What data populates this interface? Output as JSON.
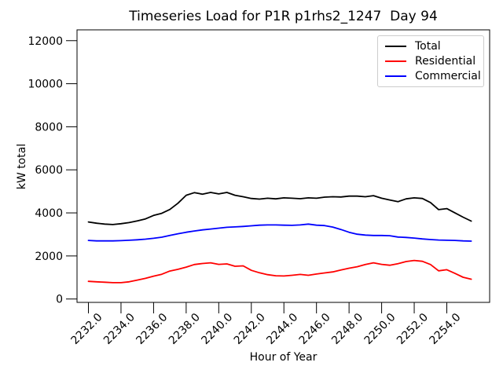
{
  "chart_data": {
    "type": "line",
    "title": "Timeseries Load for P1R p1rhs2_1247  Day 94",
    "xlabel": "Hour of Year",
    "ylabel": "kW total",
    "xlim": [
      2231.3,
      2256.63
    ],
    "ylim": [
      -157,
      12502
    ],
    "grid": false,
    "legend_position": "upper right",
    "x_ticks": [
      2232,
      2234,
      2236,
      2238,
      2240,
      2242,
      2244,
      2246,
      2248,
      2250,
      2252,
      2254
    ],
    "x_tick_labels": [
      "2232.0",
      "2234.0",
      "2236.0",
      "2238.0",
      "2240.0",
      "2242.0",
      "2244.0",
      "2246.0",
      "2248.0",
      "2250.0",
      "2252.0",
      "2254.0"
    ],
    "y_ticks": [
      0,
      2000,
      4000,
      6000,
      8000,
      10000,
      12000
    ],
    "y_tick_labels": [
      "0",
      "2000",
      "4000",
      "6000",
      "8000",
      "10000",
      "12000"
    ],
    "x": [
      2232.0,
      2232.5,
      2233.0,
      2233.5,
      2234.0,
      2234.5,
      2235.0,
      2235.5,
      2236.0,
      2236.5,
      2237.0,
      2237.5,
      2238.0,
      2238.5,
      2239.0,
      2239.5,
      2240.0,
      2240.5,
      2241.0,
      2241.5,
      2242.0,
      2242.5,
      2243.0,
      2243.5,
      2244.0,
      2244.5,
      2245.0,
      2245.5,
      2246.0,
      2246.5,
      2247.0,
      2247.5,
      2248.0,
      2248.5,
      2249.0,
      2249.5,
      2250.0,
      2250.5,
      2251.0,
      2251.5,
      2252.0,
      2252.5,
      2253.0,
      2253.5,
      2254.0,
      2254.5,
      2255.0,
      2255.5
    ],
    "series": [
      {
        "name": "Total",
        "color": "#000000",
        "values": [
          3580,
          3520,
          3480,
          3460,
          3500,
          3550,
          3630,
          3720,
          3880,
          3980,
          4160,
          4450,
          4820,
          4940,
          4870,
          4950,
          4880,
          4950,
          4820,
          4750,
          4670,
          4640,
          4680,
          4650,
          4700,
          4680,
          4660,
          4700,
          4680,
          4730,
          4750,
          4740,
          4780,
          4780,
          4750,
          4800,
          4680,
          4600,
          4520,
          4650,
          4700,
          4670,
          4480,
          4150,
          4200,
          4000,
          3800,
          3620
        ]
      },
      {
        "name": "Residential",
        "color": "#ff0000",
        "values": [
          820,
          800,
          780,
          760,
          760,
          800,
          880,
          960,
          1060,
          1150,
          1300,
          1380,
          1480,
          1600,
          1650,
          1680,
          1610,
          1630,
          1520,
          1540,
          1330,
          1220,
          1130,
          1080,
          1070,
          1100,
          1140,
          1100,
          1160,
          1210,
          1260,
          1350,
          1430,
          1500,
          1600,
          1680,
          1610,
          1570,
          1640,
          1740,
          1790,
          1750,
          1600,
          1310,
          1360,
          1190,
          1010,
          920
        ]
      },
      {
        "name": "Commercial",
        "color": "#0000ff",
        "values": [
          2720,
          2700,
          2700,
          2700,
          2710,
          2730,
          2750,
          2780,
          2820,
          2870,
          2950,
          3030,
          3100,
          3160,
          3210,
          3250,
          3290,
          3330,
          3350,
          3370,
          3400,
          3430,
          3440,
          3440,
          3430,
          3420,
          3440,
          3480,
          3430,
          3410,
          3340,
          3230,
          3100,
          3010,
          2970,
          2950,
          2950,
          2940,
          2880,
          2860,
          2830,
          2790,
          2760,
          2740,
          2730,
          2720,
          2700,
          2690
        ]
      }
    ]
  }
}
